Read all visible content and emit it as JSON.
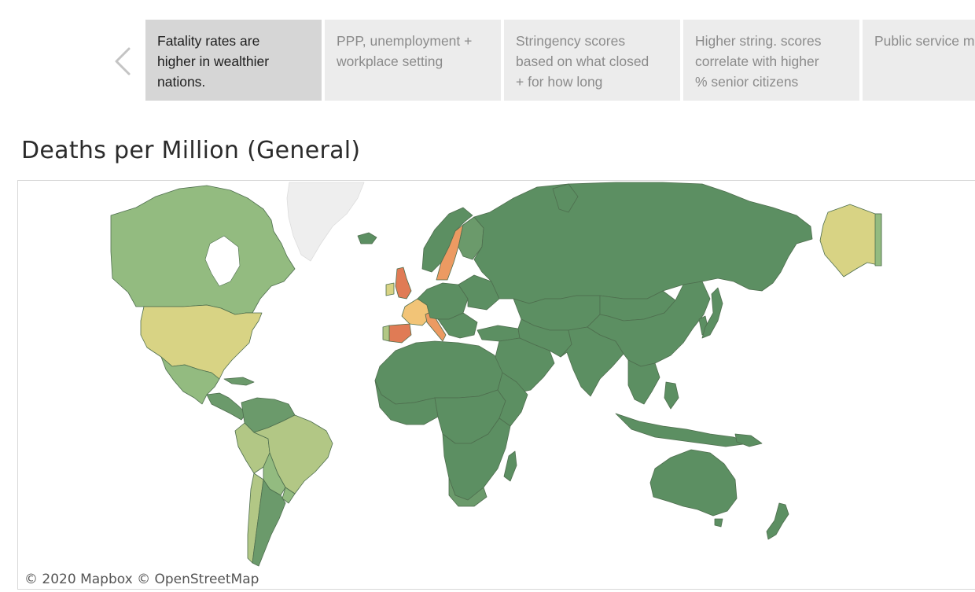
{
  "story": {
    "prev_label": "Previous story point",
    "points": [
      {
        "line1": "Fatality rates are",
        "line2": "higher in wealthier",
        "line3": "nations."
      },
      {
        "line1": "PPP, unemployment +",
        "line2": "workplace setting",
        "line3": ""
      },
      {
        "line1": "Stringency scores",
        "line2": "based on what closed",
        "line3": "+ for how long"
      },
      {
        "line1": "Higher string. scores",
        "line2": "correlate with higher",
        "line3": "% senior citizens"
      },
      {
        "line1": "Public service m",
        "line2": "",
        "line3": ""
      }
    ],
    "active_index": 0
  },
  "map": {
    "title": "Deaths per Million (General)",
    "attribution": "© 2020 Mapbox  © OpenStreetMap",
    "colors": {
      "very_low": "#5c8f62",
      "low": "#6b9a6b",
      "lowmid": "#93bb80",
      "mid": "#b2c785",
      "midhigh": "#d8d384",
      "high": "#f2c477",
      "veryhigh": "#ec9a62",
      "highest": "#e07b55",
      "nodata": "#eeeeee"
    }
  }
}
